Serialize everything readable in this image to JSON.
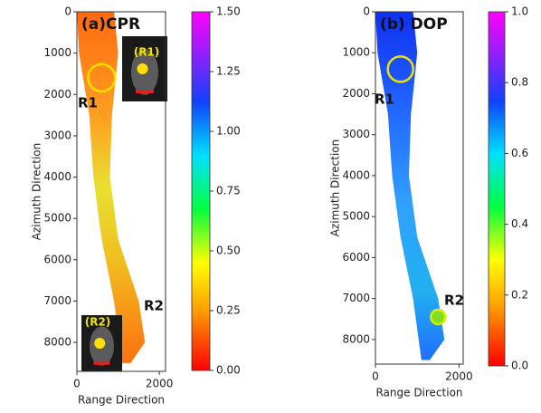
{
  "chart_data": [
    {
      "type": "image",
      "title": "(a)CPR",
      "xlabel": "Range Direction",
      "ylabel": "Azimuth Direction",
      "xlim": [
        0,
        2150
      ],
      "ylim": [
        8700,
        0
      ],
      "xticks": [
        0,
        2000
      ],
      "yticks": [
        0,
        1000,
        2000,
        3000,
        4000,
        5000,
        6000,
        7000,
        8000
      ],
      "colorbar": {
        "lim": [
          0,
          1.5
        ],
        "ticks": [
          {
            "value": 0,
            "label": "0.00"
          },
          {
            "value": 0.25,
            "label": "0.25"
          },
          {
            "value": 0.5,
            "label": "0.50"
          },
          {
            "value": 0.75,
            "label": "0.75"
          },
          {
            "value": 1,
            "label": "1.00"
          },
          {
            "value": 1.25,
            "label": "1.25"
          },
          {
            "value": 1.5,
            "label": "1.50"
          }
        ]
      },
      "annotations": [
        "R1",
        "R2",
        "(R1)",
        "(R2)"
      ]
    },
    {
      "type": "image",
      "title": "(b) DOP",
      "xlabel": "Range Direction",
      "ylabel": "Azimuth Direction",
      "xlim": [
        0,
        2100
      ],
      "ylim": [
        8600,
        0
      ],
      "xticks": [
        0,
        2000
      ],
      "yticks": [
        0,
        1000,
        2000,
        3000,
        4000,
        5000,
        6000,
        7000,
        8000
      ],
      "colorbar": {
        "lim": [
          0,
          1
        ],
        "ticks": [
          {
            "value": 0,
            "label": "0.0"
          },
          0.2,
          0.4,
          0.6,
          0.8,
          {
            "value": 1,
            "label": "1.0"
          }
        ]
      },
      "annotations": [
        "R1",
        "R2"
      ]
    }
  ]
}
